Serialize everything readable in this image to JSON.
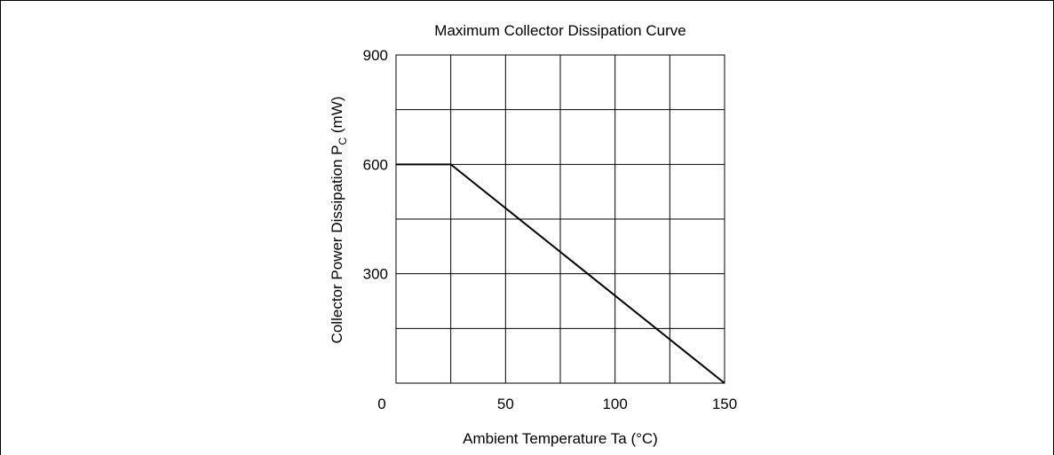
{
  "chart_data": {
    "type": "line",
    "title": "Maximum Collector Dissipation Curve",
    "xlabel": "Ambient Temperature  Ta  (°C)",
    "ylabel": {
      "main": "Collector Power Dissipation P",
      "subscript": "C",
      "unit": " (mW)"
    },
    "xlim": [
      0,
      150
    ],
    "ylim": [
      0,
      900
    ],
    "x_ticks": [
      0,
      50,
      100,
      150
    ],
    "y_ticks": [
      300,
      600,
      900
    ],
    "x_grid": [
      25,
      50,
      75,
      100,
      125
    ],
    "y_grid": [
      150,
      300,
      450,
      600,
      750
    ],
    "grid": true,
    "series": [
      {
        "x": [
          0,
          25,
          150
        ],
        "y": [
          600,
          600,
          0
        ]
      }
    ],
    "line_color": "#000000"
  }
}
